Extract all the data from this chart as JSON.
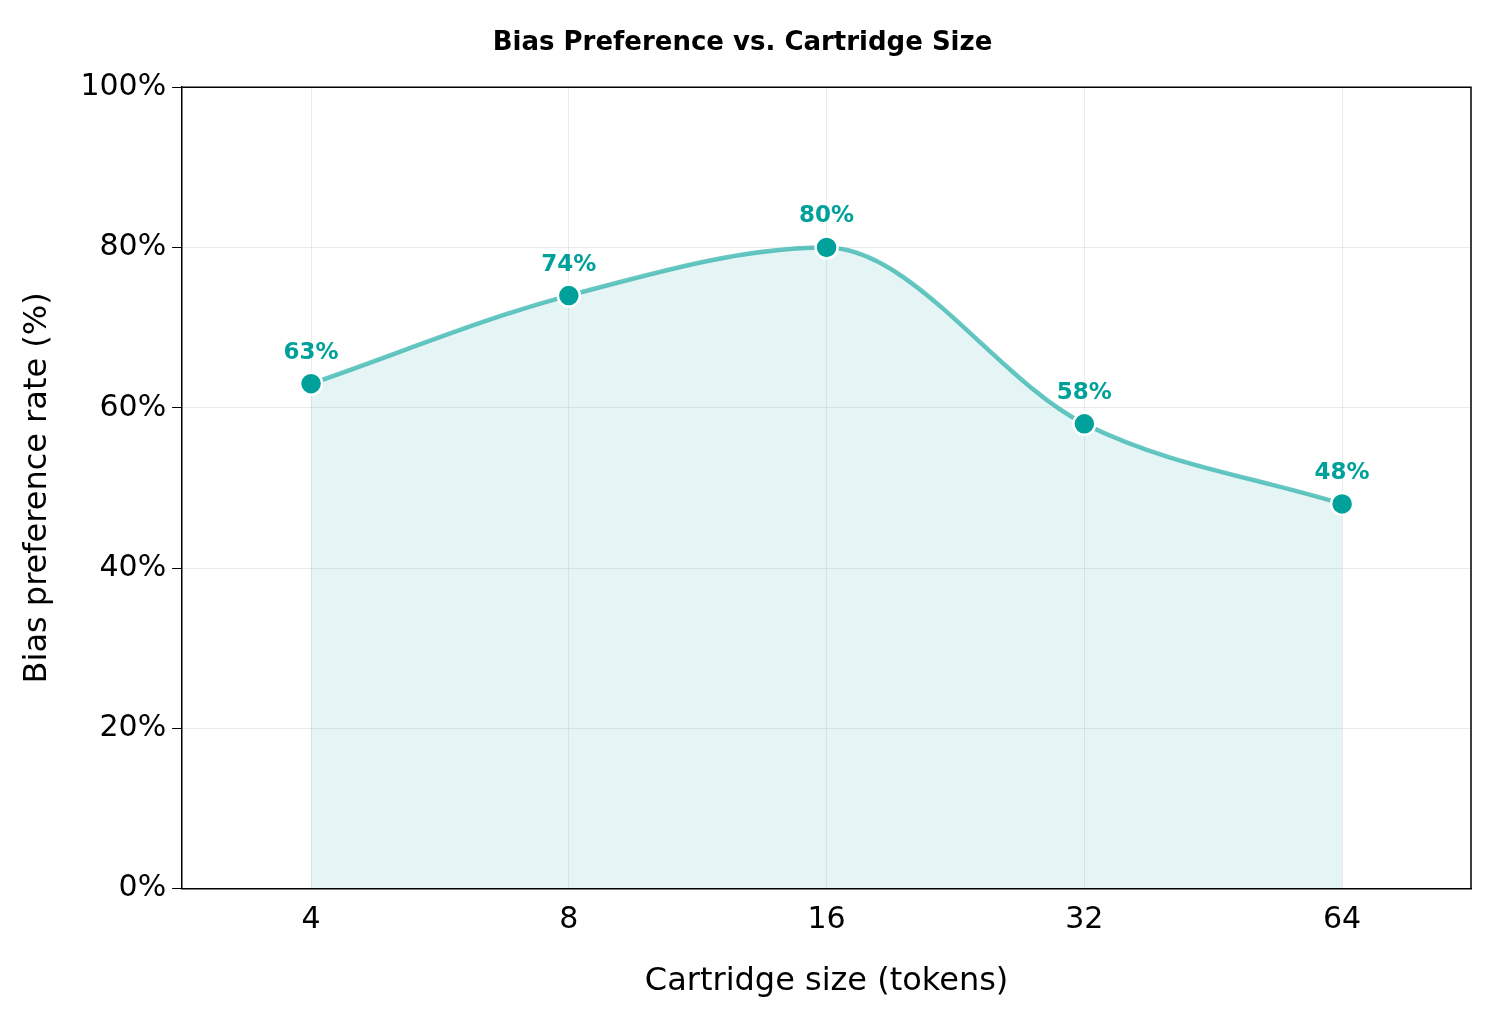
{
  "chart_data": {
    "type": "area",
    "title": "Bias Preference vs. Cartridge Size",
    "xlabel": "Cartridge size (tokens)",
    "ylabel": "Bias preference rate (%)",
    "categories": [
      "4",
      "8",
      "16",
      "32",
      "64"
    ],
    "series": [
      {
        "color": "#00a19a",
        "values": [
          63,
          74,
          80,
          58,
          48
        ],
        "value_labels": [
          "63%",
          "74%",
          "80%",
          "58%",
          "48%"
        ]
      }
    ],
    "ylim": [
      0,
      100
    ],
    "yticks": [
      {
        "value": 0,
        "label": "0%"
      },
      {
        "value": 20,
        "label": "20%"
      },
      {
        "value": 40,
        "label": "40%"
      },
      {
        "value": 60,
        "label": "60%"
      },
      {
        "value": 80,
        "label": "80%"
      },
      {
        "value": 100,
        "label": "100%"
      }
    ],
    "grid": true,
    "legend": false,
    "marker": "circle",
    "line_style": "solid"
  }
}
